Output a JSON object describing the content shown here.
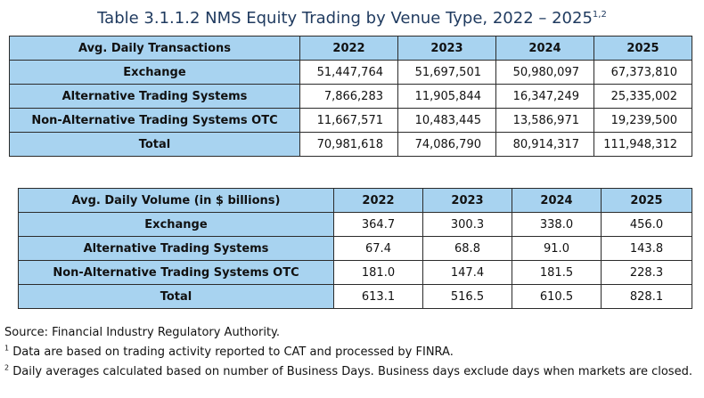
{
  "title": {
    "text": "Table 3.1.1.2 NMS Equity Trading by Venue Type, 2022 – 2025",
    "sup": "1,2"
  },
  "table1": {
    "header": "Avg. Daily Transactions",
    "years": [
      "2022",
      "2023",
      "2024",
      "2025"
    ],
    "rows": [
      {
        "label": "Exchange",
        "values": [
          "51,447,764",
          "51,697,501",
          "50,980,097",
          "67,373,810"
        ]
      },
      {
        "label": "Alternative Trading Systems",
        "values": [
          "7,866,283",
          "11,905,844",
          "16,347,249",
          "25,335,002"
        ]
      },
      {
        "label": "Non-Alternative Trading Systems OTC",
        "values": [
          "11,667,571",
          "10,483,445",
          "13,586,971",
          "19,239,500"
        ]
      },
      {
        "label": "Total",
        "values": [
          "70,981,618",
          "74,086,790",
          "80,914,317",
          "111,948,312"
        ]
      }
    ]
  },
  "table2": {
    "header": "Avg. Daily Volume (in $ billions)",
    "years": [
      "2022",
      "2023",
      "2024",
      "2025"
    ],
    "rows": [
      {
        "label": "Exchange",
        "values": [
          "364.7",
          "300.3",
          "338.0",
          "456.0"
        ]
      },
      {
        "label": "Alternative Trading Systems",
        "values": [
          "67.4",
          "68.8",
          "91.0",
          "143.8"
        ]
      },
      {
        "label": "Non-Alternative Trading Systems OTC",
        "values": [
          "181.0",
          "147.4",
          "181.5",
          "228.3"
        ]
      },
      {
        "label": "Total",
        "values": [
          "613.1",
          "516.5",
          "610.5",
          "828.1"
        ]
      }
    ]
  },
  "notes": {
    "source": "Source: Financial Industry Regulatory Authority.",
    "note1": {
      "mark": "1",
      "text": " Data are based on trading activity reported to CAT and processed by FINRA."
    },
    "note2": {
      "mark": "2",
      "text": " Daily averages calculated based on number of Business Days. Business days exclude days when markets are closed."
    }
  }
}
